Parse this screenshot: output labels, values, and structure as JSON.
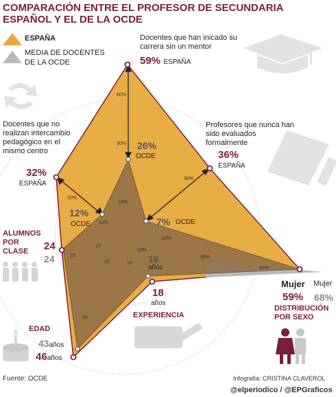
{
  "title": "COMPARACIÓN ENTRE EL PROFESOR DE SECUNDARIA ESPAÑOL Y EL DE LA OCDE",
  "legend": {
    "espana": "ESPAÑA",
    "ocde": "MEDIA DE DOCENTES DE LA OCDE"
  },
  "colors": {
    "espana_fill": "#e8a93c",
    "ocde_fill": "#8d6c46",
    "accent": "#7a1c3e",
    "ocde_line": "#b9b9bb"
  },
  "axes": {
    "mentor": {
      "label": "Docentes que han inicado su carrera sin un mentor",
      "espana": "59%",
      "espana_tag": "ESPAÑA",
      "ocde": "26%",
      "ocde_tag": "OCDE",
      "ticks": [
        "60%",
        "30%",
        "10%"
      ]
    },
    "evaluados": {
      "label": "Profesores que nunca han sido evaluados formalmente",
      "espana": "36%",
      "espana_tag": "ESPAÑA",
      "ocde": "7%",
      "ocde_tag": "OCDE",
      "ticks": [
        "30%",
        "10%"
      ]
    },
    "sexo": {
      "mujer_es_label": "Mujer",
      "mujer_oc_label": "Mujer",
      "espana": "59%",
      "ocde": "68%",
      "category": "DISTRIBUCIÓN POR SEXO",
      "ticks": [
        "60%",
        "30%",
        "10%"
      ]
    },
    "experiencia": {
      "espana": "18",
      "espana_unit": "años",
      "ocde": "16",
      "ocde_unit": "años",
      "category": "EXPERIENCIA",
      "ticks": [
        "10"
      ]
    },
    "edad": {
      "espana": "46",
      "espana_unit": "años",
      "ocde": "43",
      "ocde_unit": "años",
      "category": "EDAD",
      "ticks": [
        "30",
        "10"
      ]
    },
    "alumnos": {
      "espana": "24",
      "ocde": "24",
      "category": "ALUMNOS POR CLASE",
      "ticks": [
        "20",
        "10"
      ]
    },
    "intercambio": {
      "label": "Docentes que no realizan intercambio pedagógico en el mismo centro",
      "espana": "32%",
      "espana_tag": "ESPAÑA",
      "ocde": "12%",
      "ocde_tag": "OCDE",
      "ticks": [
        "30%",
        "10%"
      ]
    }
  },
  "chart_data": {
    "type": "radar",
    "title": "COMPARACIÓN ENTRE EL PROFESOR DE SECUNDARIA ESPAÑOL Y EL DE LA OCDE",
    "axes": [
      "Docentes que han inicado su carrera sin un mentor",
      "Profesores que nunca han sido evaluados formalmente",
      "DISTRIBUCIÓN POR SEXO (Mujer)",
      "EXPERIENCIA",
      "EDAD",
      "ALUMNOS POR CLASE",
      "Docentes que no realizan intercambio pedagógico en el mismo centro"
    ],
    "series": [
      {
        "name": "ESPAÑA",
        "values": [
          59,
          36,
          59,
          18,
          46,
          24,
          32
        ]
      },
      {
        "name": "MEDIA DE DOCENTES DE LA OCDE",
        "values": [
          26,
          7,
          68,
          16,
          43,
          24,
          12
        ]
      }
    ]
  },
  "footer": {
    "source": "Fuente: OCDE",
    "credit": "Infografía: CRISTINA CLAVEROL",
    "handle": "@elperiodico / @EPGraficos"
  }
}
